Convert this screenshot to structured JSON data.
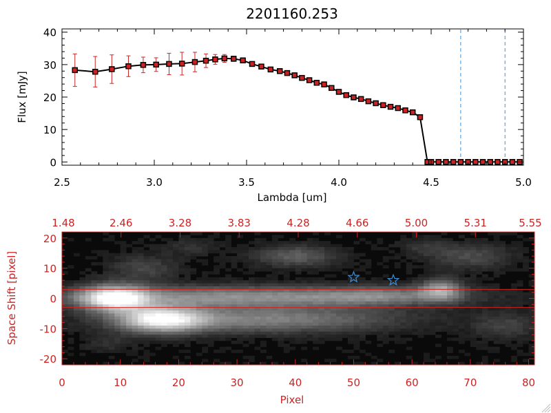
{
  "chart_data": [
    {
      "type": "line",
      "title": "2201160.253",
      "xlabel": "Lambda [um]",
      "ylabel": "Flux [mJy]",
      "xlim": [
        2.5,
        5.0
      ],
      "ylim": [
        -1,
        41
      ],
      "xticks": [
        "2.5",
        "3.0",
        "3.5",
        "4.0",
        "4.5",
        "5.0"
      ],
      "xtick_values": [
        2.5,
        3.0,
        3.5,
        4.0,
        4.5,
        5.0
      ],
      "yticks": [
        "0",
        "10",
        "20",
        "30",
        "40"
      ],
      "ytick_values": [
        0,
        10,
        20,
        30,
        40
      ],
      "reference_lines_x": [
        4.66,
        4.9
      ],
      "series": [
        {
          "name": "flux",
          "color": "#000000",
          "marker_color": "#cc2222",
          "errorbar_color": "#cc2222",
          "x": [
            2.57,
            2.68,
            2.77,
            2.86,
            2.94,
            3.01,
            3.08,
            3.15,
            3.22,
            3.28,
            3.33,
            3.38,
            3.43,
            3.48,
            3.53,
            3.58,
            3.63,
            3.68,
            3.72,
            3.76,
            3.8,
            3.84,
            3.88,
            3.92,
            3.96,
            4.0,
            4.04,
            4.08,
            4.12,
            4.16,
            4.2,
            4.24,
            4.28,
            4.32,
            4.36,
            4.4,
            4.44,
            4.48,
            4.5,
            4.54,
            4.58,
            4.62,
            4.66,
            4.7,
            4.74,
            4.78,
            4.82,
            4.86,
            4.9,
            4.94,
            4.98
          ],
          "y": [
            28.3,
            27.8,
            28.6,
            29.5,
            29.9,
            30.0,
            30.2,
            30.3,
            30.8,
            31.2,
            31.6,
            31.9,
            31.8,
            31.3,
            30.2,
            29.4,
            28.5,
            28.0,
            27.4,
            26.7,
            25.9,
            25.2,
            24.4,
            23.9,
            22.8,
            21.6,
            20.6,
            19.9,
            19.4,
            18.7,
            18.1,
            17.5,
            17.0,
            16.6,
            15.9,
            15.3,
            13.8,
            0,
            0,
            0,
            0,
            0,
            0,
            0,
            0,
            0,
            0,
            0,
            0,
            0,
            0
          ],
          "yerr": [
            5.0,
            4.7,
            4.4,
            3.2,
            2.4,
            2.1,
            3.3,
            3.5,
            3.0,
            2.1,
            1.5,
            1.2,
            0.8,
            0.4,
            0.4,
            0.4,
            0.4,
            0.4,
            0.4,
            0.4,
            0.4,
            0.4,
            0.4,
            0.4,
            0.4,
            0.4,
            0.4,
            0.4,
            0.4,
            0.4,
            0.4,
            0.4,
            0.4,
            0.4,
            0.4,
            0.4,
            0.4,
            0,
            0,
            0,
            0,
            0,
            0,
            0,
            0,
            0,
            0,
            0,
            0,
            0,
            0
          ]
        }
      ]
    },
    {
      "type": "heatmap",
      "xlabel": "Pixel",
      "ylabel": "Space Shift [pixel]",
      "xlim": [
        0,
        81
      ],
      "ylim": [
        -22,
        22
      ],
      "xticks": [
        "0",
        "10",
        "20",
        "30",
        "40",
        "50",
        "60",
        "70",
        "80"
      ],
      "xtick_values": [
        0,
        10,
        20,
        30,
        40,
        50,
        60,
        70,
        80
      ],
      "yticks": [
        "20",
        "10",
        "0",
        "-10",
        "-20"
      ],
      "ytick_values": [
        20,
        10,
        0,
        -10,
        -20
      ],
      "top_axis_ticks": [
        "1.48",
        "2.46",
        "3.28",
        "3.83",
        "4.28",
        "4.66",
        "5.00",
        "5.31",
        "5.55"
      ],
      "aperture_lines_y": [
        3,
        -3
      ],
      "star_markers": [
        {
          "x": 50,
          "y": 7
        },
        {
          "x": 56.8,
          "y": 6
        }
      ],
      "blobs": [
        {
          "x": 9,
          "y": 0,
          "sx": 4,
          "sy": 3,
          "a": 0.85
        },
        {
          "x": 17,
          "y": -7,
          "sx": 5,
          "sy": 3,
          "a": 0.8
        },
        {
          "x": 30,
          "y": 0.5,
          "sx": 22,
          "sy": 2.5,
          "a": 0.5
        },
        {
          "x": 34,
          "y": -7,
          "sx": 16,
          "sy": 3,
          "a": 0.45
        },
        {
          "x": 55,
          "y": 1,
          "sx": 8,
          "sy": 2,
          "a": 0.25
        },
        {
          "x": 65,
          "y": 3,
          "sx": 2.5,
          "sy": 2.5,
          "a": 0.5
        },
        {
          "x": 40,
          "y": 14,
          "sx": 5,
          "sy": 2.5,
          "a": 0.3
        },
        {
          "x": 14,
          "y": 10,
          "sx": 4,
          "sy": 3,
          "a": 0.2
        },
        {
          "x": 22,
          "y": 17,
          "sx": 3,
          "sy": 2,
          "a": 0.12
        },
        {
          "x": 70,
          "y": 14,
          "sx": 5,
          "sy": 3,
          "a": 0.22
        },
        {
          "x": 76,
          "y": -9,
          "sx": 4,
          "sy": 3,
          "a": 0.18
        },
        {
          "x": 62,
          "y": 17,
          "sx": 3,
          "sy": 2,
          "a": 0.12
        },
        {
          "x": 8,
          "y": -15,
          "sx": 3,
          "sy": 2,
          "a": 0.1
        }
      ]
    }
  ]
}
